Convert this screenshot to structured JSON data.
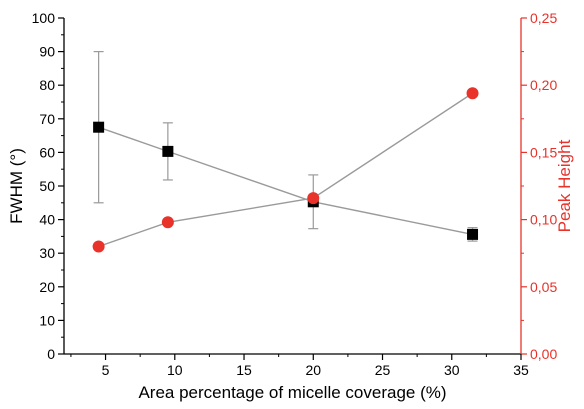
{
  "chart_data": {
    "type": "scatter",
    "title": "",
    "xlabel": "Area percentage of micelle coverage (%)",
    "ylabel_left": "FWHM (°)",
    "ylabel_right": "Peak Height",
    "xlim": [
      2,
      35
    ],
    "ylim_left": [
      0,
      100
    ],
    "ylim_right": [
      0,
      0.25
    ],
    "x_ticks": [
      "5",
      "10",
      "15",
      "20",
      "25",
      "30",
      "35"
    ],
    "y_left_ticks": [
      "0",
      "10",
      "20",
      "30",
      "40",
      "50",
      "60",
      "70",
      "80",
      "90",
      "100"
    ],
    "y_right_ticks": [
      "0,00",
      "0,05",
      "0,10",
      "0,15",
      "0,20",
      "0,25"
    ],
    "grid": false,
    "legend": "none",
    "series": [
      {
        "axis": "left",
        "marker": "square",
        "color": "#000000",
        "points": [
          {
            "x": 4.5,
            "y": 67.5,
            "err": 22.5
          },
          {
            "x": 9.5,
            "y": 60.3,
            "err": 8.5
          },
          {
            "x": 20.0,
            "y": 45.3,
            "err": 8.0
          },
          {
            "x": 31.5,
            "y": 35.6,
            "err": 2.0
          }
        ]
      },
      {
        "axis": "right",
        "marker": "circle",
        "color": "#e8322a",
        "points": [
          {
            "x": 4.5,
            "y": 0.08
          },
          {
            "x": 9.5,
            "y": 0.098
          },
          {
            "x": 20.0,
            "y": 0.116
          },
          {
            "x": 31.5,
            "y": 0.194
          }
        ]
      }
    ],
    "colors": {
      "left_axis": "#000000",
      "right_axis": "#e8322a",
      "connector": "#9a9a9a"
    }
  }
}
